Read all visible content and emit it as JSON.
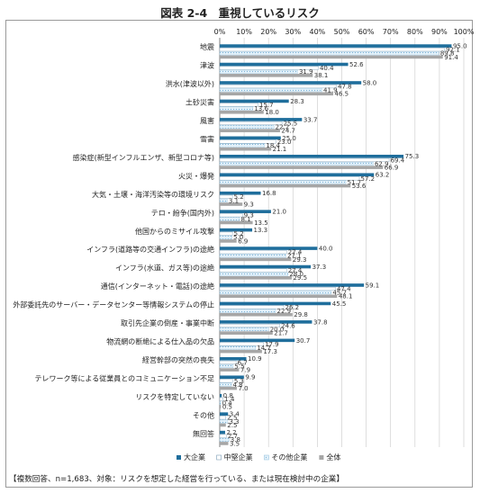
{
  "title": "図表 2-4　重視しているリスク",
  "footnote": "【複数回答、n=1,683、対象：リスクを想定した経営を行っている、または現在検討中の企業】",
  "chart_data": {
    "type": "bar",
    "orientation": "horizontal",
    "xlim": [
      0,
      100
    ],
    "ticks": [
      "0%",
      "10%",
      "20%",
      "30%",
      "40%",
      "50%",
      "60%",
      "70%",
      "80%",
      "90%",
      "100%"
    ],
    "grid": true,
    "legend_position": "bottom",
    "categories": [
      "地震",
      "津波",
      "洪水(津波以外)",
      "土砂災害",
      "風害",
      "雪害",
      "感染症(新型インフルエンザ、新型コロナ等)",
      "火災・爆発",
      "大気・土壌・海洋汚染等の環境リスク",
      "テロ・紛争(国内外)",
      "他国からのミサイル攻撃",
      "インフラ(道路等の交通インフラ)の途絶",
      "インフラ(水道、ガス等)の途絶",
      "通信(インターネット・電話)の途絶",
      "外部委託先のサーバー・データセンター等情報システムの停止",
      "取引先企業の倒産・事業中断",
      "物流網の断絶による仕入品の欠品",
      "経営幹部の突然の喪失",
      "テレワーク等による従業員とのコミュニケーション不足",
      "リスクを特定していない",
      "その他",
      "無回答"
    ],
    "series": [
      {
        "name": "大企業",
        "color": "#1f6e9c",
        "values": [
          95.0,
          52.6,
          58.0,
          28.3,
          33.7,
          25.0,
          75.3,
          63.2,
          16.8,
          21.0,
          13.3,
          40.0,
          37.3,
          59.1,
          45.5,
          37.8,
          30.7,
          10.9,
          9.9,
          0.8,
          3.4,
          2.2
        ]
      },
      {
        "name": "中堅企業",
        "color": "#ffffff",
        "values": [
          92.1,
          40.4,
          47.8,
          15.7,
          25.5,
          23.0,
          69.4,
          57.2,
          5.2,
          9.3,
          5.2,
          27.4,
          27.4,
          47.4,
          26.2,
          24.6,
          17.9,
          6.7,
          5.3,
          1.4,
          2.5,
          2.7
        ]
      },
      {
        "name": "その他企業",
        "color": "#d9ecf7",
        "values": [
          89.8,
          31.9,
          41.9,
          13.6,
          22.2,
          18.4,
          62.9,
          51.7,
          3.1,
          8.1,
          5.0,
          27.1,
          28.0,
          45.7,
          22.9,
          20.0,
          14.7,
          5.5,
          4.8,
          0.4,
          3.3,
          3.8
        ]
      },
      {
        "name": "全体",
        "color": "#a6a6a6",
        "values": [
          91.4,
          38.1,
          46.5,
          18.0,
          24.7,
          21.1,
          66.9,
          53.6,
          9.3,
          13.5,
          6.9,
          29.3,
          29.5,
          48.1,
          29.8,
          21.7,
          17.3,
          7.9,
          7.0,
          0.5,
          2.5,
          3.5
        ]
      }
    ]
  }
}
